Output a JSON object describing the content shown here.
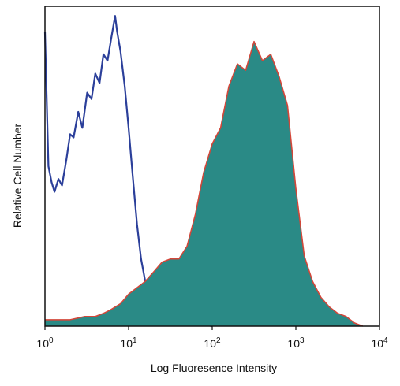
{
  "chart_data": {
    "type": "area",
    "title": "",
    "xlabel": "Log Fluoresence Intensity",
    "ylabel": "Relative Cell Number",
    "xscale": "log",
    "xlim": [
      1,
      10000
    ],
    "ylim": [
      0,
      100
    ],
    "grid": false,
    "legend": "none",
    "x_ticks": [
      {
        "base": "10",
        "exp": "0"
      },
      {
        "base": "10",
        "exp": "1"
      },
      {
        "base": "10",
        "exp": "2"
      },
      {
        "base": "10",
        "exp": "3"
      },
      {
        "base": "10",
        "exp": "4"
      }
    ],
    "series": [
      {
        "style": "line",
        "color": "#2b3f9a",
        "x": [
          1.0,
          1.1,
          1.2,
          1.3,
          1.45,
          1.6,
          1.8,
          2.0,
          2.2,
          2.5,
          2.8,
          3.2,
          3.6,
          4.0,
          4.5,
          5.0,
          5.6,
          6.2,
          6.9,
          7.3,
          8.0,
          9.0,
          10.0,
          11.2,
          12.6,
          14.1,
          15.8,
          17.8,
          20.0,
          22.4,
          25.1,
          28.2,
          31.6,
          40.0,
          50.0,
          63.0,
          80.0,
          100.0
        ],
        "y": [
          92,
          50,
          45,
          42,
          46,
          44,
          52,
          60,
          59,
          67,
          62,
          73,
          71,
          79,
          76,
          85,
          83,
          90,
          97,
          92,
          86,
          75,
          62,
          47,
          32,
          21,
          14,
          10,
          7,
          5,
          4,
          3,
          2.5,
          2,
          1.5,
          1,
          0.5,
          0
        ]
      },
      {
        "style": "filled",
        "color": "#2a8a86",
        "edge_color": "#d2473a",
        "x": [
          1.0,
          1.5,
          2.0,
          3.0,
          4.0,
          5.0,
          6.0,
          8.0,
          10.0,
          12.6,
          15.8,
          20.0,
          25.1,
          31.6,
          40.0,
          50.0,
          63.0,
          79.0,
          100.0,
          126.0,
          158.0,
          200.0,
          251.0,
          316.0,
          398.0,
          501.0,
          631.0,
          794.0,
          1000.0,
          1259.0,
          1585.0,
          1995.0,
          2512.0,
          3162.0,
          3981.0,
          5012.0,
          6310.0
        ],
        "y": [
          2,
          2,
          2,
          3,
          3,
          4,
          5,
          7,
          10,
          12,
          14,
          17,
          20,
          21,
          21,
          25,
          35,
          48,
          57,
          62,
          75,
          82,
          80,
          89,
          83,
          85,
          78,
          69,
          43,
          22,
          14,
          9,
          6,
          4,
          3,
          1,
          0
        ]
      }
    ]
  }
}
